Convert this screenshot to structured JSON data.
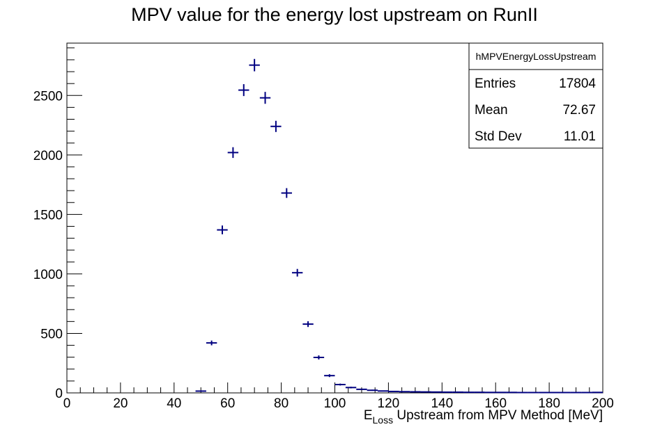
{
  "chart_data": {
    "type": "scatter",
    "title": "MPV value for the energy lost upstream on RunII",
    "xlabel": {
      "main": "E",
      "sub": "Loss",
      "rest": " Upstream from MPV Method [MeV]"
    },
    "ylabel": "",
    "xlim": [
      0,
      200
    ],
    "ylim": [
      0,
      2940
    ],
    "xticks": [
      0,
      20,
      40,
      60,
      80,
      100,
      120,
      140,
      160,
      180,
      200
    ],
    "yticks": [
      0,
      500,
      1000,
      1500,
      2000,
      2500
    ],
    "grid": false,
    "legend": "none",
    "series_color": "#000080",
    "bin_width": 4,
    "x": [
      50,
      54,
      58,
      62,
      66,
      70,
      74,
      78,
      82,
      86,
      90,
      94,
      98,
      102,
      106,
      110,
      114,
      118,
      122,
      126,
      130,
      134,
      138,
      142,
      146,
      150,
      154,
      158,
      162,
      166,
      170,
      174,
      178,
      182,
      186,
      190,
      194,
      198
    ],
    "values": [
      15,
      420,
      1370,
      2020,
      2545,
      2755,
      2480,
      2240,
      1680,
      1010,
      578,
      298,
      145,
      70,
      45,
      30,
      22,
      16,
      12,
      10,
      9,
      8,
      7,
      6,
      6,
      5,
      5,
      4,
      4,
      4,
      3,
      3,
      3,
      3,
      3,
      3,
      3,
      4
    ],
    "errors": [
      4,
      20,
      37,
      45,
      50,
      52,
      50,
      47,
      41,
      32,
      24,
      17,
      12,
      8,
      7,
      5,
      5,
      4,
      3,
      3,
      3,
      3,
      3,
      2,
      2,
      2,
      2,
      2,
      2,
      2,
      2,
      2,
      2,
      2,
      2,
      2,
      2,
      2
    ],
    "stats_box": {
      "name": "hMPVEnergyLossUpstream",
      "rows": [
        {
          "label": "Entries",
          "value": "17804"
        },
        {
          "label": "Mean",
          "value": "72.67"
        },
        {
          "label": "Std Dev",
          "value": "11.01"
        }
      ]
    }
  }
}
